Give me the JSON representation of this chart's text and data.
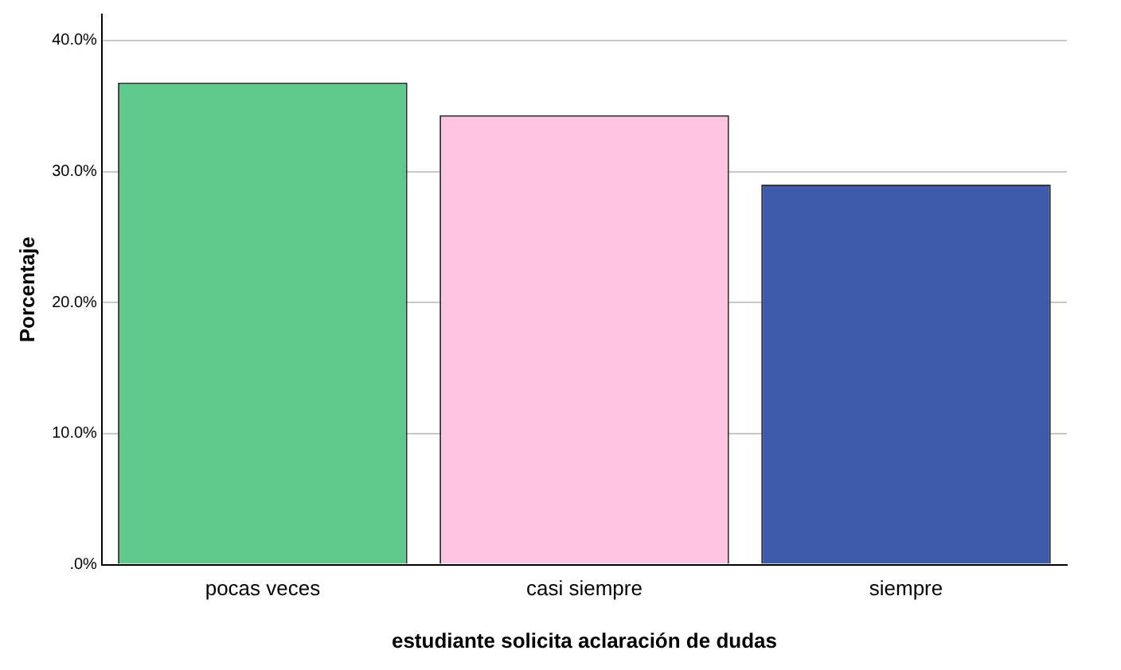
{
  "chart_data": {
    "type": "bar",
    "xlabel": "estudiante solicita aclaración de dudas",
    "ylabel": "Porcentaje",
    "categories": [
      "pocas veces",
      "casi siempre",
      "siempre"
    ],
    "values": [
      36.8,
      34.3,
      29.0
    ],
    "colors": [
      "#5ec98a",
      "#fec4e2",
      "#3e5bab"
    ],
    "ylim": [
      0,
      42
    ],
    "yticks": [
      {
        "value": 0,
        "label": ".0%"
      },
      {
        "value": 10,
        "label": "10.0%"
      },
      {
        "value": 20,
        "label": "20.0%"
      },
      {
        "value": 30,
        "label": "30.0%"
      },
      {
        "value": 40,
        "label": "40.0%"
      }
    ],
    "grid": "y"
  }
}
